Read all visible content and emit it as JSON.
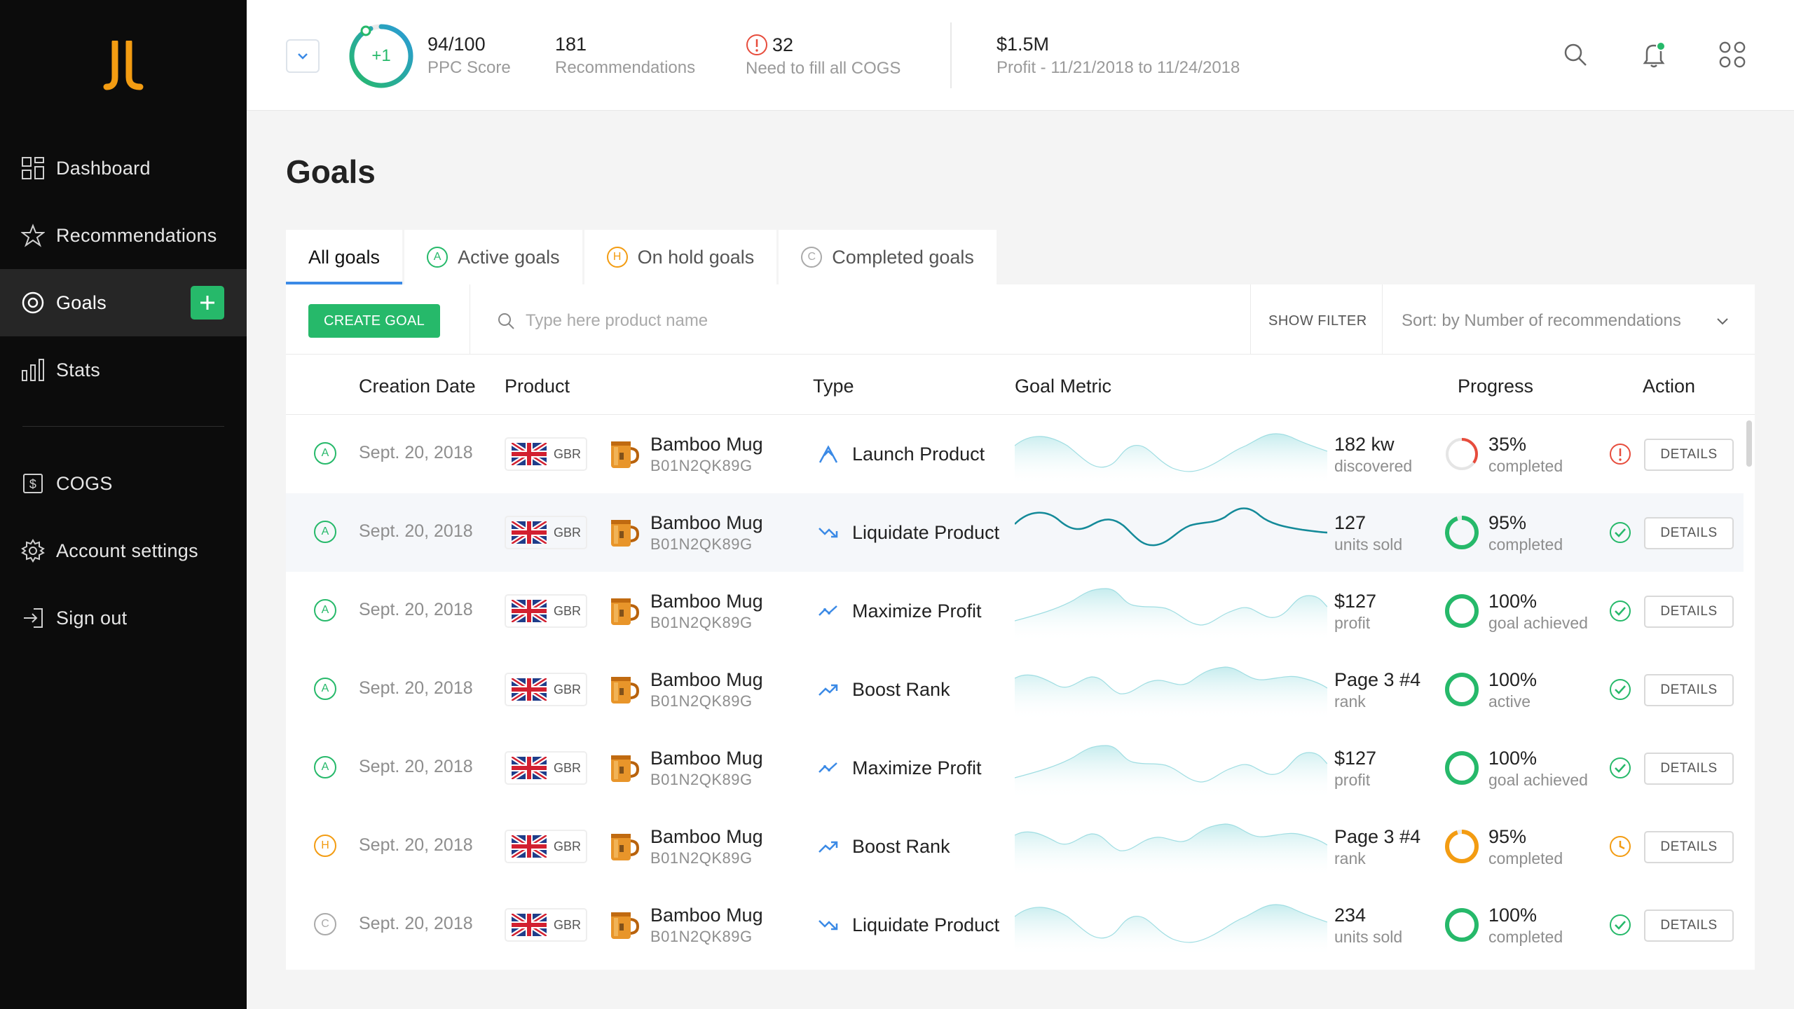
{
  "colors": {
    "accent": "#26b96a",
    "teal": "#2b9bb5",
    "warning": "#f39c12",
    "danger": "#e74c3c",
    "sidebar": "#0c0c0c",
    "tab_active": "#3b8ae6"
  },
  "sidebar": {
    "logo": "jl-logo",
    "items": [
      {
        "label": "Dashboard",
        "icon": "dashboard-icon"
      },
      {
        "label": "Recommendations",
        "icon": "star-icon"
      },
      {
        "label": "Goals",
        "icon": "target-icon",
        "active": true
      },
      {
        "label": "Stats",
        "icon": "bar-chart-icon"
      },
      {
        "label": "COGS",
        "icon": "dollar-doc-icon"
      },
      {
        "label": "Account settings",
        "icon": "gear-icon"
      },
      {
        "label": "Sign out",
        "icon": "sign-out-icon"
      }
    ]
  },
  "header": {
    "score_delta": "+1",
    "score_fraction": 0.94,
    "stats": [
      {
        "value": "94/100",
        "label": "PPC Score"
      },
      {
        "value": "181",
        "label": "Recommendations"
      },
      {
        "value": "32",
        "label": "Need to fill all COGS"
      },
      {
        "value": "$1.5M",
        "label": "Profit - 11/21/2018 to 11/24/2018"
      }
    ]
  },
  "page": {
    "title": "Goals"
  },
  "tabs": [
    {
      "label": "All goals",
      "letter": ""
    },
    {
      "label": "Active goals",
      "letter": "A"
    },
    {
      "label": "On hold goals",
      "letter": "H"
    },
    {
      "label": "Completed goals",
      "letter": "C"
    }
  ],
  "toolbar": {
    "create_label": "CREATE GOAL",
    "search_placeholder": "Type here product name",
    "filter_label": "SHOW FILTER",
    "sort_label": "Sort: by Number of recommendations"
  },
  "table": {
    "headers": {
      "creation_date": "Creation Date",
      "product": "Product",
      "type": "Type",
      "goal_metric": "Goal Metric",
      "progress": "Progress",
      "action": "Action"
    },
    "details_label": "DETAILS",
    "rows": [
      {
        "status": "A",
        "date": "Sept. 20, 2018",
        "country": "GBR",
        "product": "Bamboo Mug",
        "sku": "B01N2QK89G",
        "type": "Launch Product",
        "type_icon": "launch-icon",
        "metric_value": "182 kw",
        "metric_label": "discovered",
        "progress": 0.35,
        "progress_value": "35%",
        "progress_label": "completed",
        "action_icon": "alert-icon"
      },
      {
        "status": "A",
        "date": "Sept. 20, 2018",
        "country": "GBR",
        "product": "Bamboo Mug",
        "sku": "B01N2QK89G",
        "type": "Liquidate Product",
        "type_icon": "liquidate-icon",
        "metric_value": "127",
        "metric_label": "units sold",
        "progress": 0.95,
        "progress_value": "95%",
        "progress_label": "completed",
        "action_icon": "check-icon"
      },
      {
        "status": "A",
        "date": "Sept. 20, 2018",
        "country": "GBR",
        "product": "Bamboo Mug",
        "sku": "B01N2QK89G",
        "type": "Maximize Profit",
        "type_icon": "maximize-icon",
        "metric_value": "$127",
        "metric_label": "profit",
        "progress": 1.0,
        "progress_value": "100%",
        "progress_label": "goal achieved",
        "action_icon": "check-icon"
      },
      {
        "status": "A",
        "date": "Sept. 20, 2018",
        "country": "GBR",
        "product": "Bamboo Mug",
        "sku": "B01N2QK89G",
        "type": "Boost Rank",
        "type_icon": "boost-icon",
        "metric_value": "Page 3 #4",
        "metric_label": "rank",
        "progress": 1.0,
        "progress_value": "100%",
        "progress_label": "active",
        "action_icon": "check-icon"
      },
      {
        "status": "A",
        "date": "Sept. 20, 2018",
        "country": "GBR",
        "product": "Bamboo Mug",
        "sku": "B01N2QK89G",
        "type": "Maximize Profit",
        "type_icon": "maximize-icon",
        "metric_value": "$127",
        "metric_label": "profit",
        "progress": 1.0,
        "progress_value": "100%",
        "progress_label": "goal achieved",
        "action_icon": "check-icon"
      },
      {
        "status": "H",
        "date": "Sept. 20, 2018",
        "country": "GBR",
        "product": "Bamboo Mug",
        "sku": "B01N2QK89G",
        "type": "Boost Rank",
        "type_icon": "boost-icon",
        "metric_value": "Page 3 #4",
        "metric_label": "rank",
        "progress": 0.95,
        "progress_value": "95%",
        "progress_label": "completed",
        "action_icon": "clock-icon"
      },
      {
        "status": "C",
        "date": "Sept. 20, 2018",
        "country": "GBR",
        "product": "Bamboo Mug",
        "sku": "B01N2QK89G",
        "type": "Liquidate Product",
        "type_icon": "liquidate-icon",
        "metric_value": "234",
        "metric_label": "units sold",
        "progress": 1.0,
        "progress_value": "100%",
        "progress_label": "completed",
        "action_icon": "check-icon"
      }
    ]
  }
}
